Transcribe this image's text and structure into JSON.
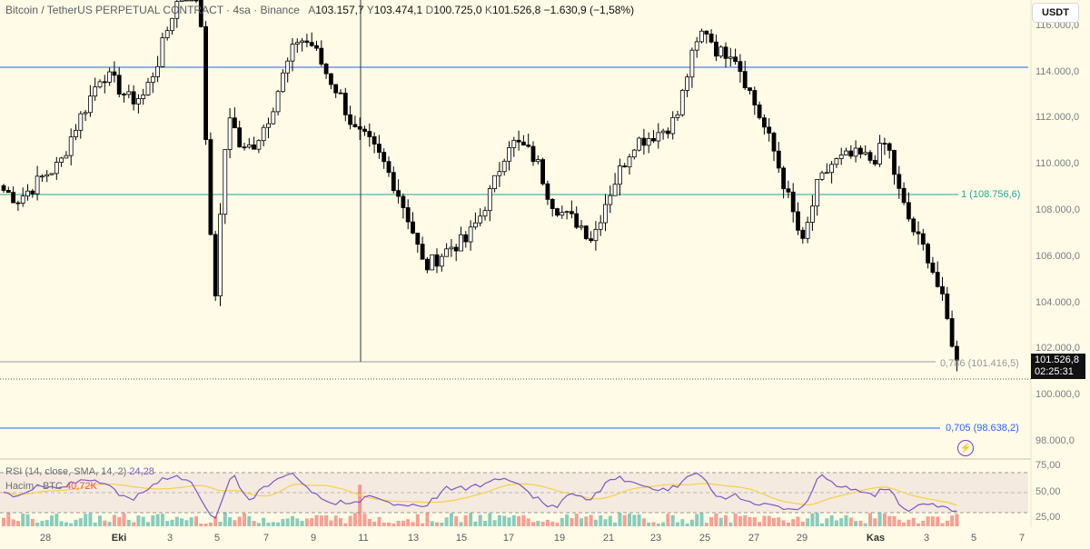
{
  "header": {
    "symbol": "Bitcoin / TetherUS PERPETUAL CONTRACT · 4sa · Binance",
    "o_label": "A",
    "o_value": "103.157,7",
    "h_label": "Y",
    "h_value": "103.474,1",
    "l_label": "D",
    "l_value": "100.725,0",
    "c_label": "K",
    "c_value": "101.526,8",
    "change": "−1.630,9 (−1,58%)"
  },
  "currency_button": "USDT",
  "price_axis": [
    "116.000,0",
    "114.000,0",
    "112.000,0",
    "110.000,0",
    "108.000,0",
    "106.000,0",
    "104.000,0",
    "102.000,0",
    "100.000,0",
    "98.000,0"
  ],
  "rsi_axis": [
    "75,00",
    "50,00",
    "25,00"
  ],
  "last_price": {
    "price": "101.526,8",
    "countdown": "02:25:31"
  },
  "fib_levels": [
    {
      "label": "1 (108.756,6)",
      "color": "#26a69a"
    },
    {
      "label": "0,786 (101.416,5)",
      "color": "#9598a1"
    },
    {
      "label": "0,705 (98.638,2)",
      "color": "#2962ff"
    }
  ],
  "indicators": {
    "rsi_name": "RSI (14, close, SMA, 14, 2)",
    "rsi_value": "24,28",
    "rsi_sma_value": "",
    "volume_name": "Hacim · BTC",
    "volume_value": "40,72K"
  },
  "time_axis": [
    {
      "label": "28",
      "bold": false
    },
    {
      "label": "Eki",
      "bold": true
    },
    {
      "label": "3",
      "bold": false
    },
    {
      "label": "5",
      "bold": false
    },
    {
      "label": "7",
      "bold": false
    },
    {
      "label": "9",
      "bold": false
    },
    {
      "label": "11",
      "bold": false
    },
    {
      "label": "13",
      "bold": false
    },
    {
      "label": "15",
      "bold": false
    },
    {
      "label": "17",
      "bold": false
    },
    {
      "label": "19",
      "bold": false
    },
    {
      "label": "21",
      "bold": false
    },
    {
      "label": "23",
      "bold": false
    },
    {
      "label": "25",
      "bold": false
    },
    {
      "label": "27",
      "bold": false
    },
    {
      "label": "29",
      "bold": false
    },
    {
      "label": "Kas",
      "bold": true
    },
    {
      "label": "3",
      "bold": false
    },
    {
      "label": "5",
      "bold": false
    },
    {
      "label": "7",
      "bold": false
    }
  ],
  "colors": {
    "background": "#fffbe6",
    "up": "#ffffff",
    "down": "#000000",
    "horizontal_line": "#2962ff",
    "fib_1": "#26a69a",
    "rsi_line": "#7e57c2",
    "rsi_sma": "#f7d046",
    "volume_up": "#26a69a",
    "volume_down": "#ef5350"
  },
  "chart_data": {
    "type": "candlestick",
    "ylim": [
      97500,
      117200
    ],
    "horizontal_lines": [
      114200,
      108756.6,
      101416.5,
      98638.2
    ],
    "anchor_closes": [
      [
        108900,
        108500,
        109000,
        109600,
        110000,
        111500,
        112700,
        114000,
        113500,
        112800,
        113000,
        114500,
        116500,
        118000,
        117200,
        103500,
        112500,
        110500,
        111000,
        112200,
        114000,
        115500,
        115200,
        114000,
        113000,
        111500,
        111000,
        110200,
        109000,
        107500,
        105500,
        106000,
        106500,
        106700,
        107800,
        109200,
        111000,
        110800,
        110200,
        108500,
        107800,
        107500,
        106800,
        108500,
        109800,
        111000,
        111200,
        111500,
        112000,
        114500,
        116000,
        114800,
        115000,
        113500,
        112000,
        110500,
        108500,
        106500,
        109000,
        110000,
        110300,
        110400,
        110200,
        111000,
        108500,
        107000,
        106000,
        104000,
        101527
      ]
    ]
  }
}
